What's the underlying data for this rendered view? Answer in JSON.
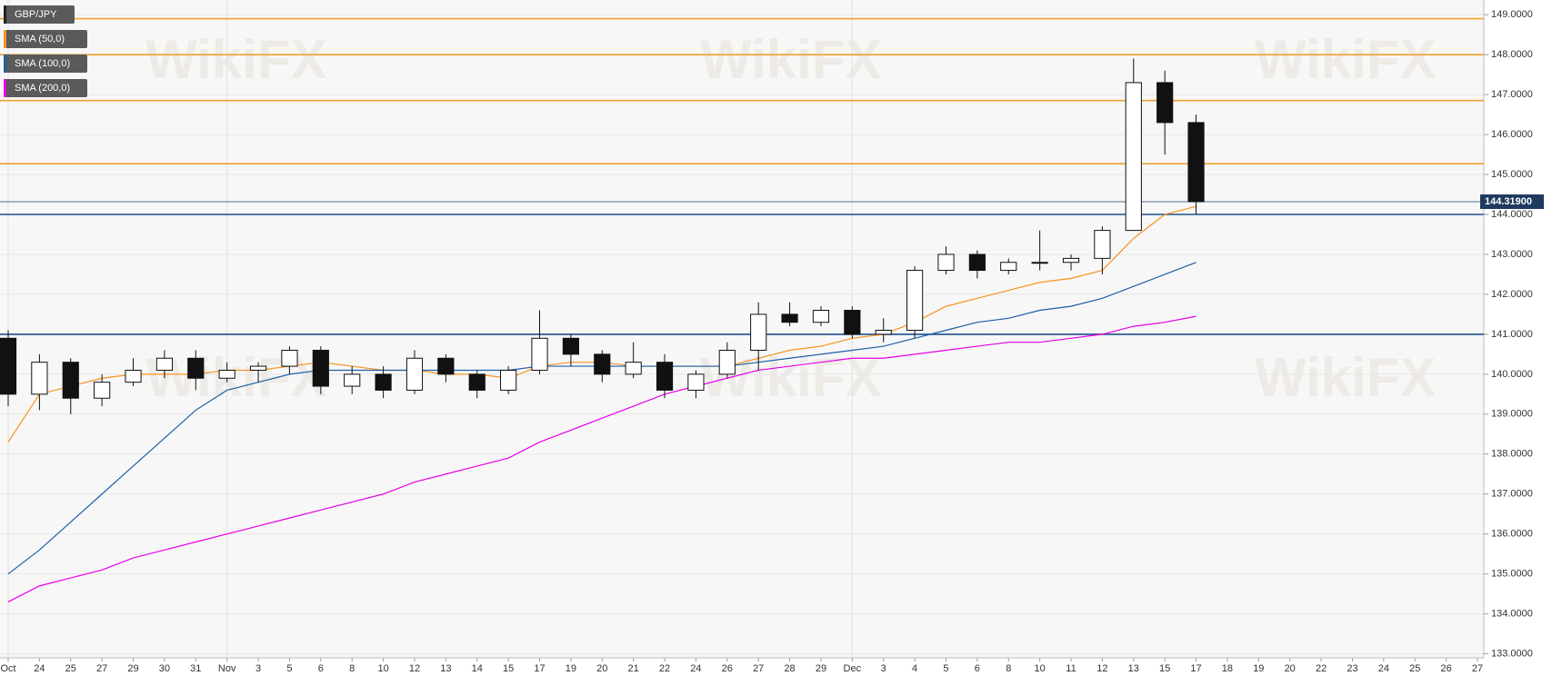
{
  "chart_data": {
    "type": "candlestick",
    "legend": [
      "GBP/JPY",
      "SMA (50,0)",
      "SMA (100,0)",
      "SMA (200,0)"
    ],
    "legend_colors": [
      "#222222",
      "#f7931e",
      "#1f5fa8",
      "#e600e6"
    ],
    "watermark": "WikiFX",
    "categories": [
      "Oct",
      "24",
      "25",
      "27",
      "29",
      "30",
      "31",
      "Nov",
      "3",
      "5",
      "6",
      "8",
      "10",
      "12",
      "13",
      "14",
      "15",
      "17",
      "19",
      "20",
      "21",
      "22",
      "24",
      "26",
      "27",
      "28",
      "29",
      "Dec",
      "3",
      "4",
      "5",
      "6",
      "8",
      "10",
      "11",
      "12",
      "13",
      "15",
      "17",
      "18",
      "19",
      "20",
      "22",
      "23",
      "24",
      "25",
      "26",
      "27"
    ],
    "open": [
      140.9,
      139.5,
      140.3,
      139.4,
      139.8,
      140.1,
      140.4,
      139.9,
      140.1,
      140.2,
      140.6,
      139.7,
      140.0,
      139.6,
      140.4,
      140.0,
      139.6,
      140.1,
      140.9,
      140.5,
      140.0,
      140.3,
      139.6,
      140.0,
      140.6,
      141.5,
      141.3,
      141.6,
      141.0,
      141.1,
      142.6,
      143.0,
      142.6,
      142.8,
      142.8,
      142.9,
      143.6,
      147.3,
      146.3,
      null,
      null,
      null,
      null,
      null,
      null,
      null,
      null,
      null
    ],
    "high": [
      141.1,
      140.5,
      140.4,
      140.0,
      140.4,
      140.6,
      140.6,
      140.3,
      140.3,
      140.7,
      140.7,
      140.2,
      140.2,
      140.6,
      140.5,
      140.1,
      140.2,
      141.6,
      141.0,
      140.6,
      140.8,
      140.5,
      140.1,
      140.8,
      141.8,
      141.8,
      141.7,
      141.7,
      141.4,
      142.7,
      143.2,
      143.1,
      142.9,
      143.6,
      143.0,
      143.7,
      147.9,
      147.6,
      146.5,
      null,
      null,
      null,
      null,
      null,
      null,
      null,
      null,
      null
    ],
    "low": [
      139.2,
      139.1,
      139.0,
      139.2,
      139.7,
      139.9,
      139.6,
      139.8,
      139.8,
      140.0,
      139.5,
      139.5,
      139.4,
      139.5,
      139.8,
      139.4,
      139.5,
      140.0,
      140.2,
      139.8,
      139.9,
      139.4,
      139.4,
      139.9,
      140.1,
      141.2,
      141.2,
      140.9,
      140.8,
      140.9,
      142.5,
      142.4,
      142.5,
      142.6,
      142.6,
      142.5,
      143.6,
      145.5,
      144.0,
      null,
      null,
      null,
      null,
      null,
      null,
      null,
      null,
      null
    ],
    "close": [
      139.5,
      140.3,
      139.4,
      139.8,
      140.1,
      140.4,
      139.9,
      140.1,
      140.2,
      140.6,
      139.7,
      140.0,
      139.6,
      140.4,
      140.0,
      139.6,
      140.1,
      140.9,
      140.5,
      140.0,
      140.3,
      139.6,
      140.0,
      140.6,
      141.5,
      141.3,
      141.6,
      141.0,
      141.1,
      142.6,
      143.0,
      142.6,
      142.8,
      142.8,
      142.9,
      143.6,
      147.3,
      146.3,
      144.319,
      null,
      null,
      null,
      null,
      null,
      null,
      null,
      null,
      null
    ],
    "series": [
      {
        "name": "SMA (50,0)",
        "color": "#f7931e",
        "values": [
          138.3,
          139.5,
          139.7,
          139.9,
          140.0,
          140.0,
          140.0,
          140.1,
          140.1,
          140.2,
          140.3,
          140.2,
          140.1,
          140.1,
          140.0,
          140.0,
          139.9,
          140.2,
          140.3,
          140.3,
          140.2,
          140.2,
          140.2,
          140.2,
          140.4,
          140.6,
          140.7,
          140.9,
          141.0,
          141.3,
          141.7,
          141.9,
          142.1,
          142.3,
          142.4,
          142.6,
          143.4,
          144.0,
          144.2,
          null,
          null,
          null,
          null,
          null,
          null,
          null,
          null,
          null
        ]
      },
      {
        "name": "SMA (100,0)",
        "color": "#1f5fa8",
        "values": [
          135.0,
          135.6,
          136.3,
          137.0,
          137.7,
          138.4,
          139.1,
          139.6,
          139.8,
          140.0,
          140.1,
          140.1,
          140.1,
          140.1,
          140.1,
          140.1,
          140.1,
          140.2,
          140.2,
          140.2,
          140.2,
          140.2,
          140.2,
          140.2,
          140.3,
          140.4,
          140.5,
          140.6,
          140.7,
          140.9,
          141.1,
          141.3,
          141.4,
          141.6,
          141.7,
          141.9,
          142.2,
          142.5,
          142.8,
          null,
          null,
          null,
          null,
          null,
          null,
          null,
          null,
          null
        ]
      },
      {
        "name": "SMA (200,0)",
        "color": "#e600e6",
        "values": [
          134.3,
          134.7,
          134.9,
          135.1,
          135.4,
          135.6,
          135.8,
          136.0,
          136.2,
          136.4,
          136.6,
          136.8,
          137.0,
          137.3,
          137.5,
          137.7,
          137.9,
          138.3,
          138.6,
          138.9,
          139.2,
          139.5,
          139.7,
          139.9,
          140.1,
          140.2,
          140.3,
          140.4,
          140.4,
          140.5,
          140.6,
          140.7,
          140.8,
          140.8,
          140.9,
          141.0,
          141.2,
          141.3,
          141.45,
          null,
          null,
          null,
          null,
          null,
          null,
          null,
          null,
          null
        ]
      }
    ],
    "levels": [
      {
        "value": 148.9,
        "color": "#f0a030"
      },
      {
        "value": 148.0,
        "color": "#f0a030"
      },
      {
        "value": 146.85,
        "color": "#f0a030"
      },
      {
        "value": 145.27,
        "color": "#f0a030"
      },
      {
        "value": 144.0,
        "color": "#1f4f8f"
      },
      {
        "value": 141.0,
        "color": "#1f4f8f"
      }
    ],
    "last_price": {
      "value": 144.319,
      "label": "144.31900"
    },
    "ylim": [
      132.9,
      149.3
    ],
    "yticks": [
      {
        "value": 133,
        "label": "133.0000"
      },
      {
        "value": 134,
        "label": "134.0000"
      },
      {
        "value": 135,
        "label": "135.0000"
      },
      {
        "value": 136,
        "label": "136.0000"
      },
      {
        "value": 137,
        "label": "137.0000"
      },
      {
        "value": 138,
        "label": "138.0000"
      },
      {
        "value": 139,
        "label": "139.0000"
      },
      {
        "value": 140,
        "label": "140.0000"
      },
      {
        "value": 141,
        "label": "141.0000"
      },
      {
        "value": 142,
        "label": "142.0000"
      },
      {
        "value": 143,
        "label": "143.0000"
      },
      {
        "value": 144,
        "label": "144.0000"
      },
      {
        "value": 145,
        "label": "145.0000"
      },
      {
        "value": 146,
        "label": "146.0000"
      },
      {
        "value": 147,
        "label": "147.0000"
      },
      {
        "value": 148,
        "label": "148.0000"
      },
      {
        "value": 149,
        "label": "149.0000"
      }
    ],
    "grid": true
  }
}
